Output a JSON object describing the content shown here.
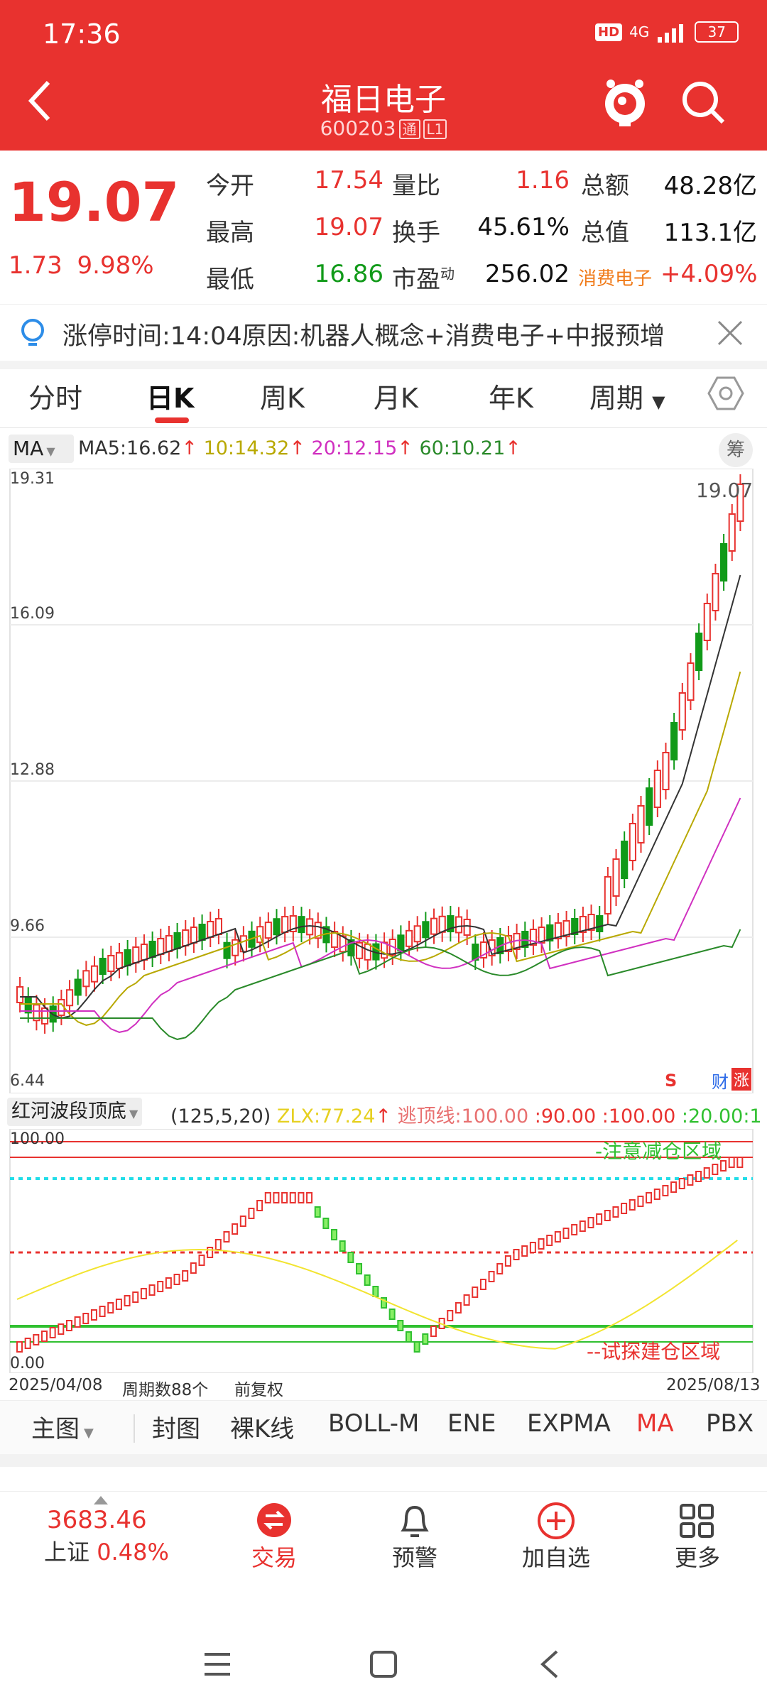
{
  "status_bar": {
    "time": "17:36",
    "battery": "37",
    "network": "4G"
  },
  "header": {
    "title": "福日电子",
    "code": "600203",
    "tag1": "通",
    "tag2": "L1"
  },
  "quote": {
    "price": "19.07",
    "change": "1.73",
    "change_pct": "9.98%",
    "stats": [
      {
        "label": "今开",
        "value": "17.54",
        "color": "red"
      },
      {
        "label": "量比",
        "value": "1.16",
        "color": "red"
      },
      {
        "label": "总额",
        "value": "48.28亿",
        "color": "dark"
      },
      {
        "label": "最高",
        "value": "19.07",
        "color": "red"
      },
      {
        "label": "换手",
        "value": "45.61%",
        "color": "dark"
      },
      {
        "label": "总值",
        "value": "113.1亿",
        "color": "dark"
      },
      {
        "label": "最低",
        "value": "16.86",
        "color": "green"
      },
      {
        "label": "市盈",
        "sup": "动",
        "value": "256.02",
        "color": "dark"
      },
      {
        "label": "消费电子",
        "value": "+4.09%",
        "color": "red"
      }
    ]
  },
  "notice": {
    "text": "涨停时间:14:04原因:机器人概念+消费电子+中报预增"
  },
  "tabs": [
    "分时",
    "日K",
    "周K",
    "月K",
    "年K",
    "周期"
  ],
  "active_tab": "日K",
  "ma_bar": {
    "selector": "MA",
    "ma5": "MA5:16.62",
    "ma10": "10:14.32",
    "ma20": "20:12.15",
    "ma60": "60:10.21",
    "chip_button": "筹"
  },
  "kline": {
    "y_labels": [
      "19.31",
      "16.09",
      "12.88",
      "9.66",
      "6.44"
    ],
    "price_label": "19.07",
    "marker_s": "S",
    "badge_cai": "财",
    "badge_zhang": "涨"
  },
  "indicator": {
    "name": "红河波段顶底",
    "params": "(125,5,20)",
    "zlx": "ZLX:77.24",
    "taoding": "逃顶线:100.00",
    "v90": ":90.00",
    "v100": ":100.00",
    "v20": ":20.00",
    "v1": ":1",
    "y_top": "100.00",
    "y_bottom": "0.00",
    "upper_note": "-注意减仓区域",
    "lower_note": "--试探建仓区域"
  },
  "date_bar": {
    "start": "2025/04/08",
    "count": "周期数88个",
    "adjust": "前复权",
    "end": "2025/08/13"
  },
  "indicator_tabs": [
    "主图",
    "封图",
    "裸K线",
    "BOLL-M",
    "ENE",
    "EXPMA",
    "MA",
    "PBX"
  ],
  "active_indicator": "MA",
  "bottom_nav": {
    "index_value": "3683.46",
    "index_name": "上证",
    "index_pct": "0.48%",
    "trade": "交易",
    "alert": "预警",
    "add": "加自选",
    "more": "更多"
  },
  "chart_data": {
    "type": "candlestick",
    "x_range": [
      "2025/04/08",
      "2025/08/13"
    ],
    "periods": 88,
    "ylim": [
      6.44,
      19.31
    ],
    "last_close": 19.07,
    "ma": {
      "MA5": 16.62,
      "MA10": 14.32,
      "MA20": 12.15,
      "MA60": 10.21
    },
    "indicator_ylim": [
      0,
      100
    ]
  }
}
